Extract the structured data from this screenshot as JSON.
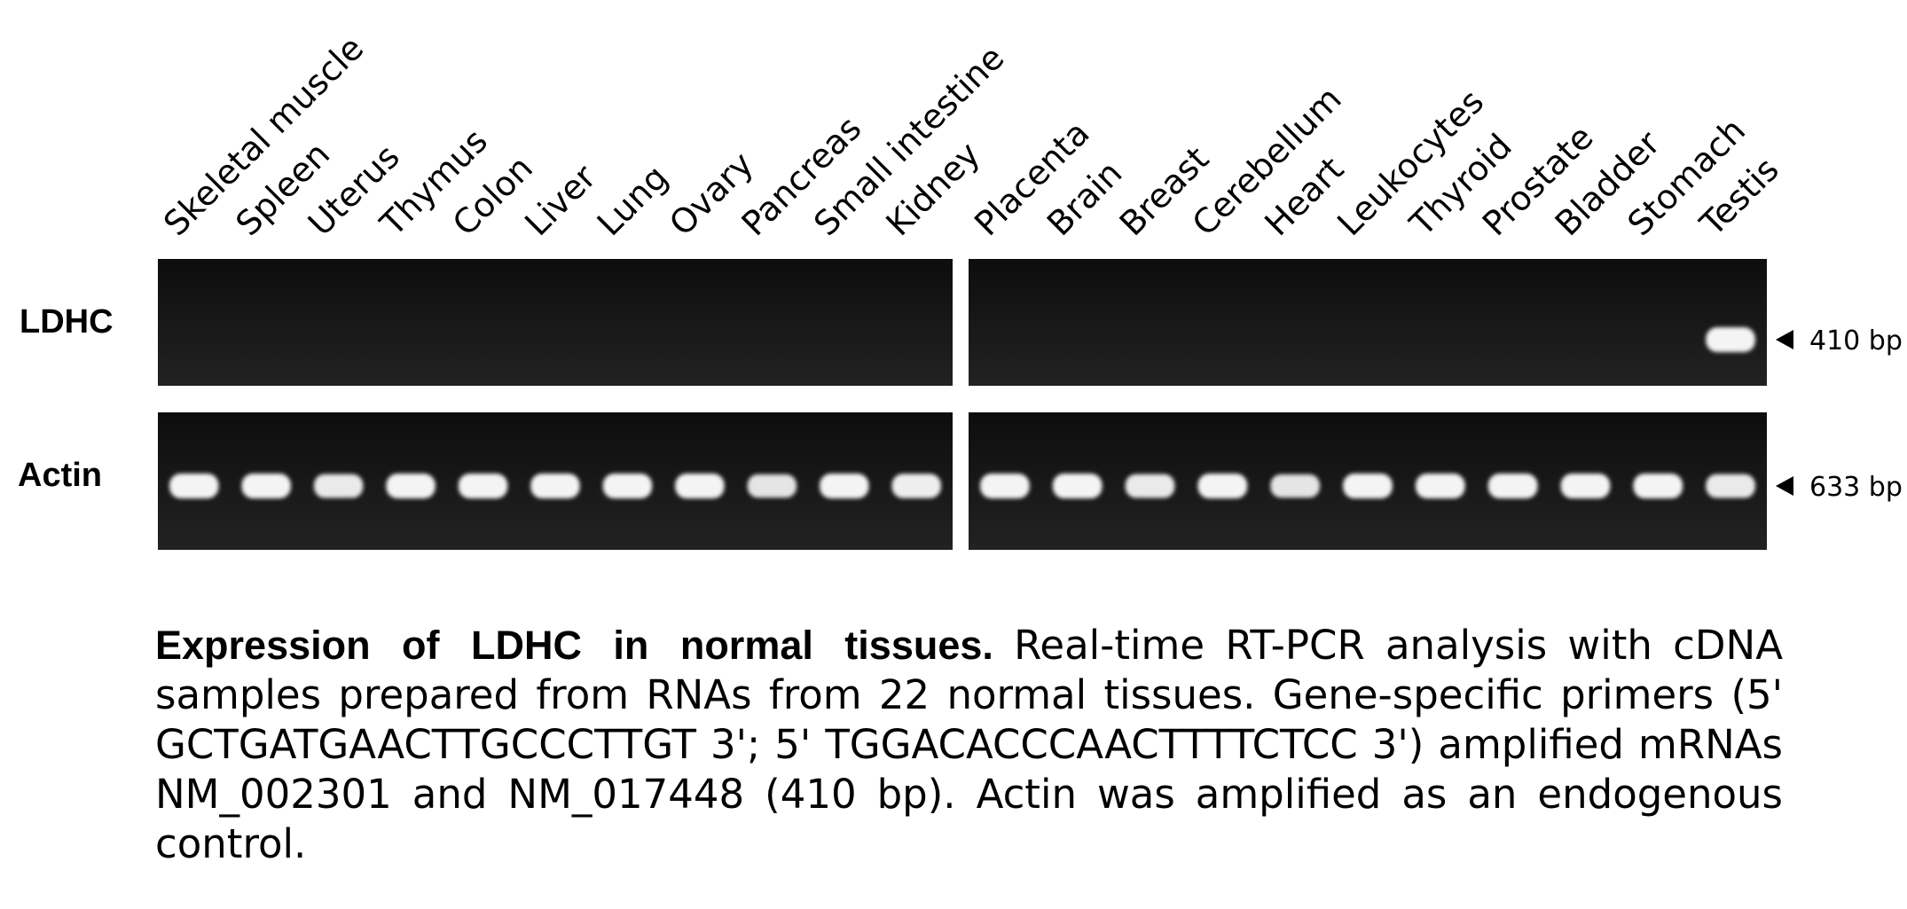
{
  "tissues_left": [
    "Skeletal muscle",
    "Spleen",
    "Uterus",
    "Thymus",
    "Colon",
    "Liver",
    "Lung",
    "Ovary",
    "Pancreas",
    "Small intestine",
    "Kidney"
  ],
  "tissues_right": [
    "Placenta",
    "Brain",
    "Breast",
    "Cerebellum",
    "Heart",
    "Leukocytes",
    "Thyroid",
    "Prostate",
    "Bladder",
    "Stomach",
    "Testis"
  ],
  "rows": [
    {
      "label": "LDHC",
      "size": "410 bp",
      "band_intensity_left": [
        0,
        0,
        0,
        0,
        0,
        0,
        0,
        0,
        0,
        0,
        0
      ],
      "band_intensity_right": [
        0,
        0,
        0,
        0,
        0,
        0,
        0,
        0,
        0,
        0,
        1
      ]
    },
    {
      "label": "Actin",
      "size": "633 bp",
      "band_intensity_left": [
        1,
        1,
        0.9,
        1,
        1,
        1,
        1,
        1,
        0.85,
        1,
        0.95
      ],
      "band_intensity_right": [
        1,
        1,
        0.9,
        1,
        0.85,
        1,
        1,
        1,
        1,
        1,
        0.9
      ]
    }
  ],
  "colors": {
    "gel": "#1a1a1a",
    "band": "#f4f4f4"
  },
  "caption": {
    "title": "Expression of LDHC in normal tissues.",
    "body": "Real-time RT-PCR analysis with cDNA samples prepared from RNAs from 22 normal tissues. Gene-specific primers (5' GCTGATGAACTTGCCCTTGT 3'; 5' TGGACACCCAACTTTTCTCC 3') amplified mRNAs NM_002301 and NM_017448 (410 bp). Actin was amplified as an endogenous control."
  }
}
